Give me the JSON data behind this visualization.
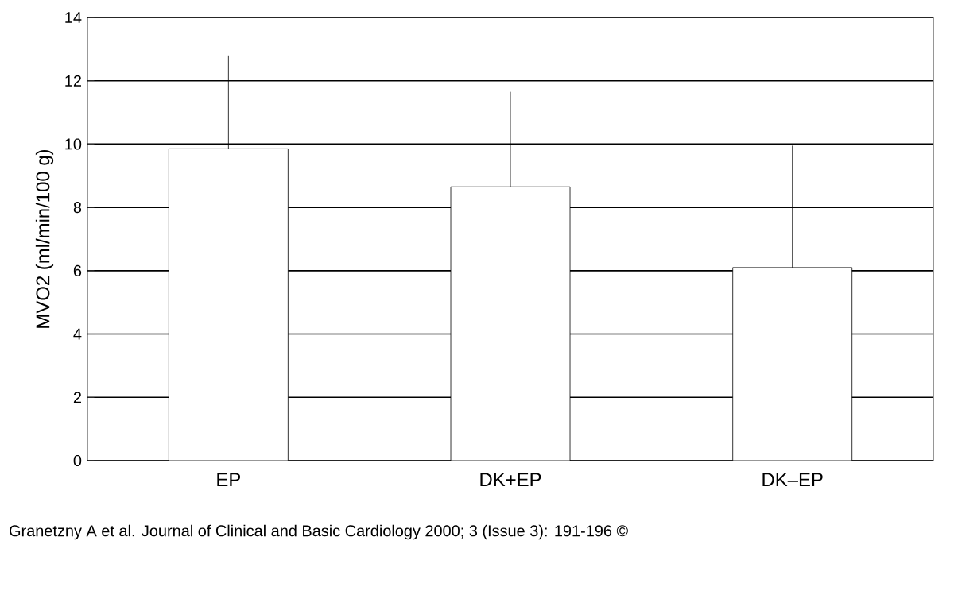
{
  "chart_data": {
    "type": "bar",
    "ylabel": "MVO2 (ml/min/100 g)",
    "categories": [
      "EP",
      "DK+EP",
      "DK–EP"
    ],
    "values": [
      9.85,
      8.65,
      6.1
    ],
    "color": "#ffffff",
    "errors": [
      [
        9.85,
        12.8
      ],
      [
        8.65,
        11.65
      ],
      [
        6.1,
        9.95
      ]
    ],
    "ylim": [
      0,
      14
    ],
    "yticks": [
      0,
      2,
      4,
      6,
      8,
      10,
      12,
      14
    ],
    "grid": "y",
    "annotations": [
      "Granetzny A et al. Journal of Clinical and Basic Cardiology 2000; 3 (Issue 3): 191-196 ©"
    ]
  }
}
